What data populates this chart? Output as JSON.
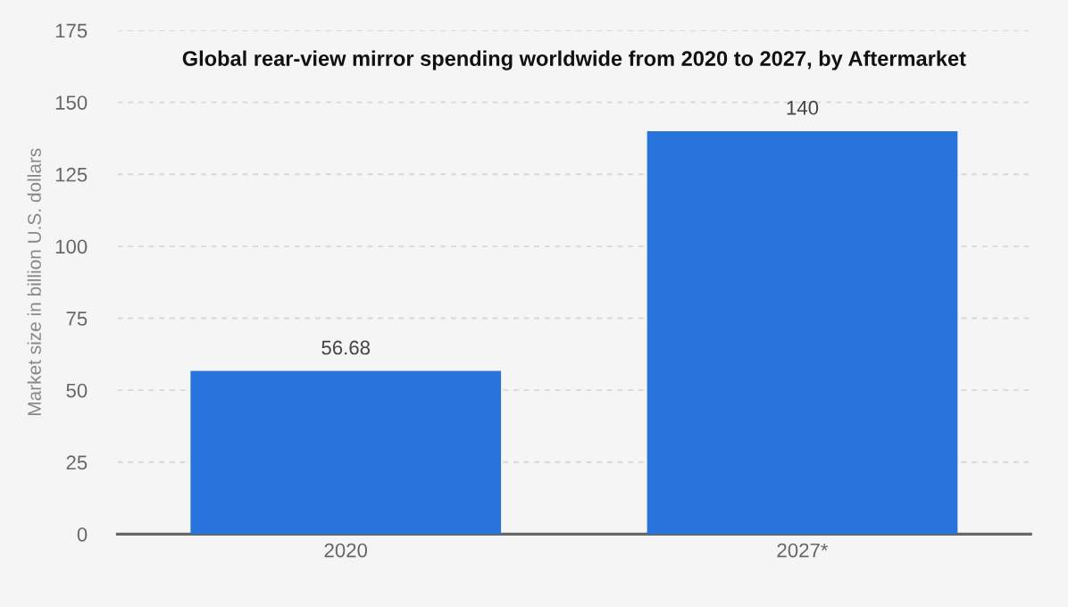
{
  "chart_data": {
    "type": "bar",
    "title": "Global rear-view mirror spending worldwide from 2020 to 2027, by Aftermarket",
    "ylabel": "Market size in billion U.S. dollars",
    "categories": [
      "2020",
      "2027*"
    ],
    "values": [
      56.68,
      140
    ],
    "color": "#2775dc",
    "value_labels": [
      "56.68",
      "140"
    ],
    "ylim": [
      0,
      175
    ],
    "yticks": [
      0,
      25,
      50,
      75,
      100,
      125,
      150,
      175
    ],
    "grid": "y"
  }
}
